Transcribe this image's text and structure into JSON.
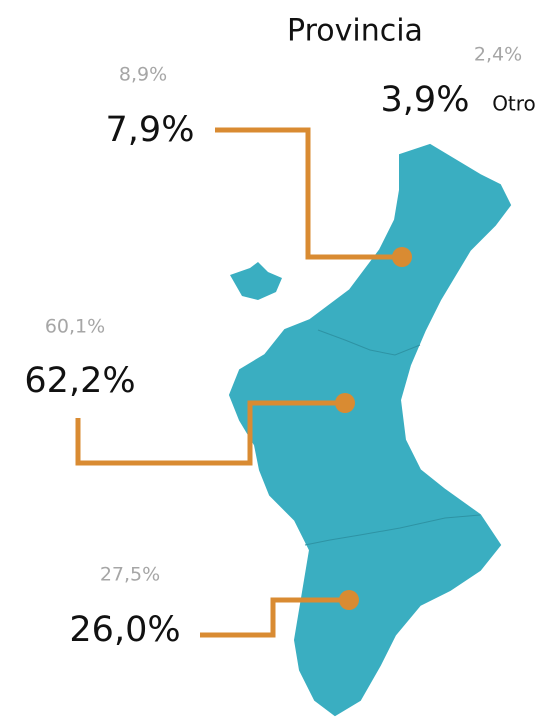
{
  "title": "Provincia",
  "regions": [
    {
      "previous": "8,9%",
      "current": "7,9%"
    },
    {
      "previous": "60,1%",
      "current": "62,2%"
    },
    {
      "previous": "27,5%",
      "current": "26,0%"
    }
  ],
  "other": {
    "label": "Otro",
    "previous": "2,4%",
    "current": "3,9%"
  }
}
